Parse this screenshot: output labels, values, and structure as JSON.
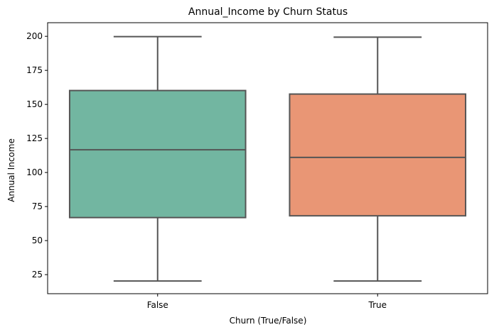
{
  "chart_data": {
    "type": "box",
    "title": "Annual_Income by Churn Status",
    "xlabel": "Churn (True/False)",
    "ylabel": "Annual Income",
    "categories": [
      "False",
      "True"
    ],
    "yticks": [
      25,
      50,
      75,
      100,
      125,
      150,
      175,
      200
    ],
    "ylim": [
      11,
      210
    ],
    "grid": false,
    "boxes": [
      {
        "category": "False",
        "min": 20.3,
        "q1": 66.9,
        "median": 116.7,
        "q3": 160.2,
        "max": 199.8,
        "color": "#72b6a1"
      },
      {
        "category": "True",
        "min": 20.3,
        "q1": 68.2,
        "median": 111.1,
        "q3": 157.6,
        "max": 199.4,
        "color": "#e99675"
      }
    ],
    "line_color": "#555555"
  }
}
